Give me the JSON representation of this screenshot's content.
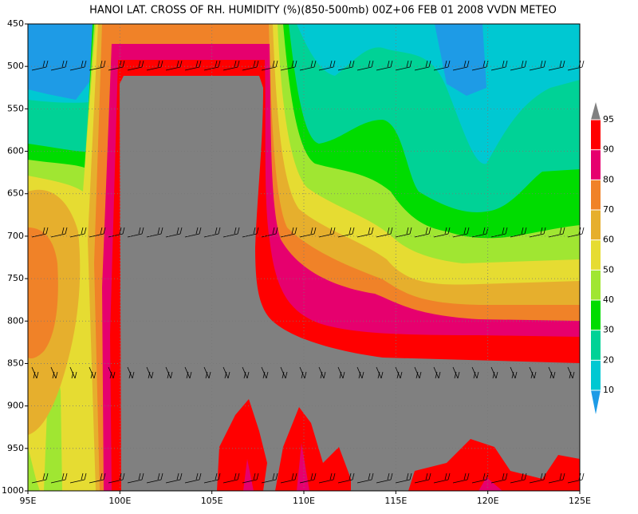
{
  "chart_data": {
    "type": "contour",
    "title": "HANOI LAT. CROSS OF RH. HUMIDITY (%)(850-500mb) 00Z+06 FEB 01 2008 VVDN METEO",
    "xlim": [
      95,
      125
    ],
    "xticks": [
      {
        "value": 95,
        "label": "95E"
      },
      {
        "value": 100,
        "label": "100E"
      },
      {
        "value": 105,
        "label": "105E"
      },
      {
        "value": 110,
        "label": "110E"
      },
      {
        "value": 115,
        "label": "115E"
      },
      {
        "value": 120,
        "label": "120E"
      },
      {
        "value": 125,
        "label": "125E"
      }
    ],
    "ylim": [
      1000,
      450
    ],
    "yticks": [
      450,
      500,
      550,
      600,
      650,
      700,
      750,
      800,
      850,
      900,
      950,
      1000
    ],
    "grid": true,
    "colorbar": {
      "levels": [
        10,
        20,
        30,
        40,
        50,
        60,
        70,
        80,
        90,
        95
      ],
      "colors": [
        "#00c8d2",
        "#00d296",
        "#00dc00",
        "#a0e632",
        "#e6dc32",
        "#e6af2d",
        "#f08228",
        "#e6006e",
        "#ff0000"
      ],
      "under_color": "#1e9be6",
      "over_color": "#808080"
    }
  }
}
